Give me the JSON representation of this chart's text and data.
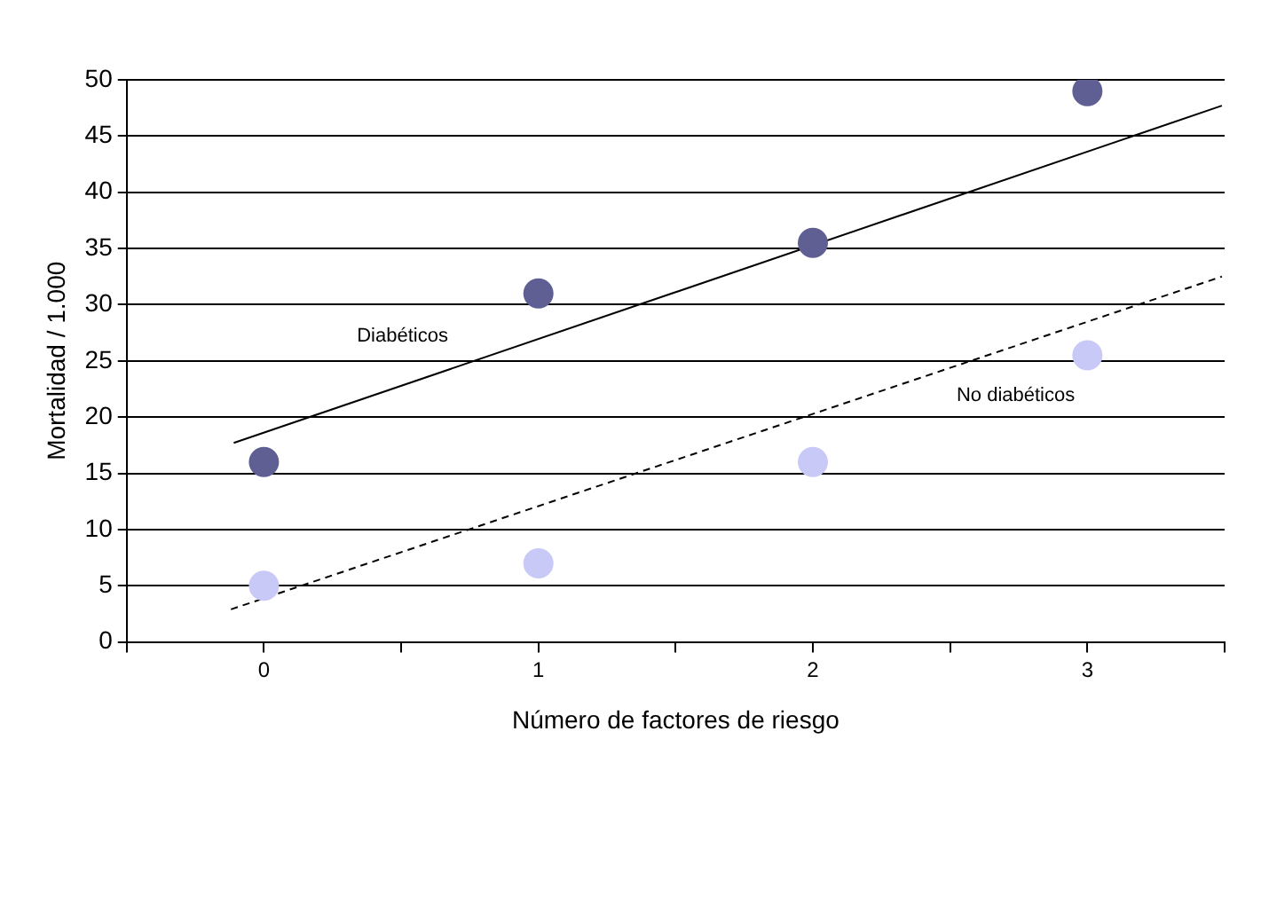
{
  "chart_data": {
    "type": "scatter",
    "xlabel": "Número de factores de riesgo",
    "ylabel": "Mortalidad / 1.000",
    "xlim": [
      -0.5,
      3.5
    ],
    "xticks": [
      {
        "value": -0.5,
        "label": null
      },
      0,
      {
        "value": 0.5,
        "label": null
      },
      1,
      {
        "value": 1.5,
        "label": null
      },
      2,
      {
        "value": 2.5,
        "label": null
      },
      3,
      {
        "value": 3.5,
        "label": null
      }
    ],
    "ylim": [
      0,
      50
    ],
    "yticks": [
      0,
      5,
      10,
      15,
      20,
      25,
      30,
      35,
      40,
      45,
      50
    ],
    "grid": "y",
    "legend": false,
    "series": [
      {
        "color": "#5f5f94",
        "marker": "circle",
        "x": [
          0,
          1,
          2,
          3
        ],
        "values": [
          16,
          31,
          35.5,
          49
        ]
      },
      {
        "color": "#c9c9f7",
        "marker": "circle",
        "x": [
          0,
          1,
          2,
          3
        ],
        "values": [
          5,
          7,
          16,
          25.5
        ]
      },
      {
        "type": "line",
        "name": "Diabéticos",
        "color": "#000000",
        "marker": "none",
        "line_style": "solid",
        "x": [
          -0.11,
          3.49
        ],
        "values": [
          17.7,
          47.7
        ]
      },
      {
        "type": "line",
        "name": "No diabéticos",
        "color": "#000000",
        "marker": "none",
        "line_style": "dashed",
        "x": [
          -0.12,
          3.49
        ],
        "values": [
          2.9,
          32.5
        ]
      }
    ]
  }
}
